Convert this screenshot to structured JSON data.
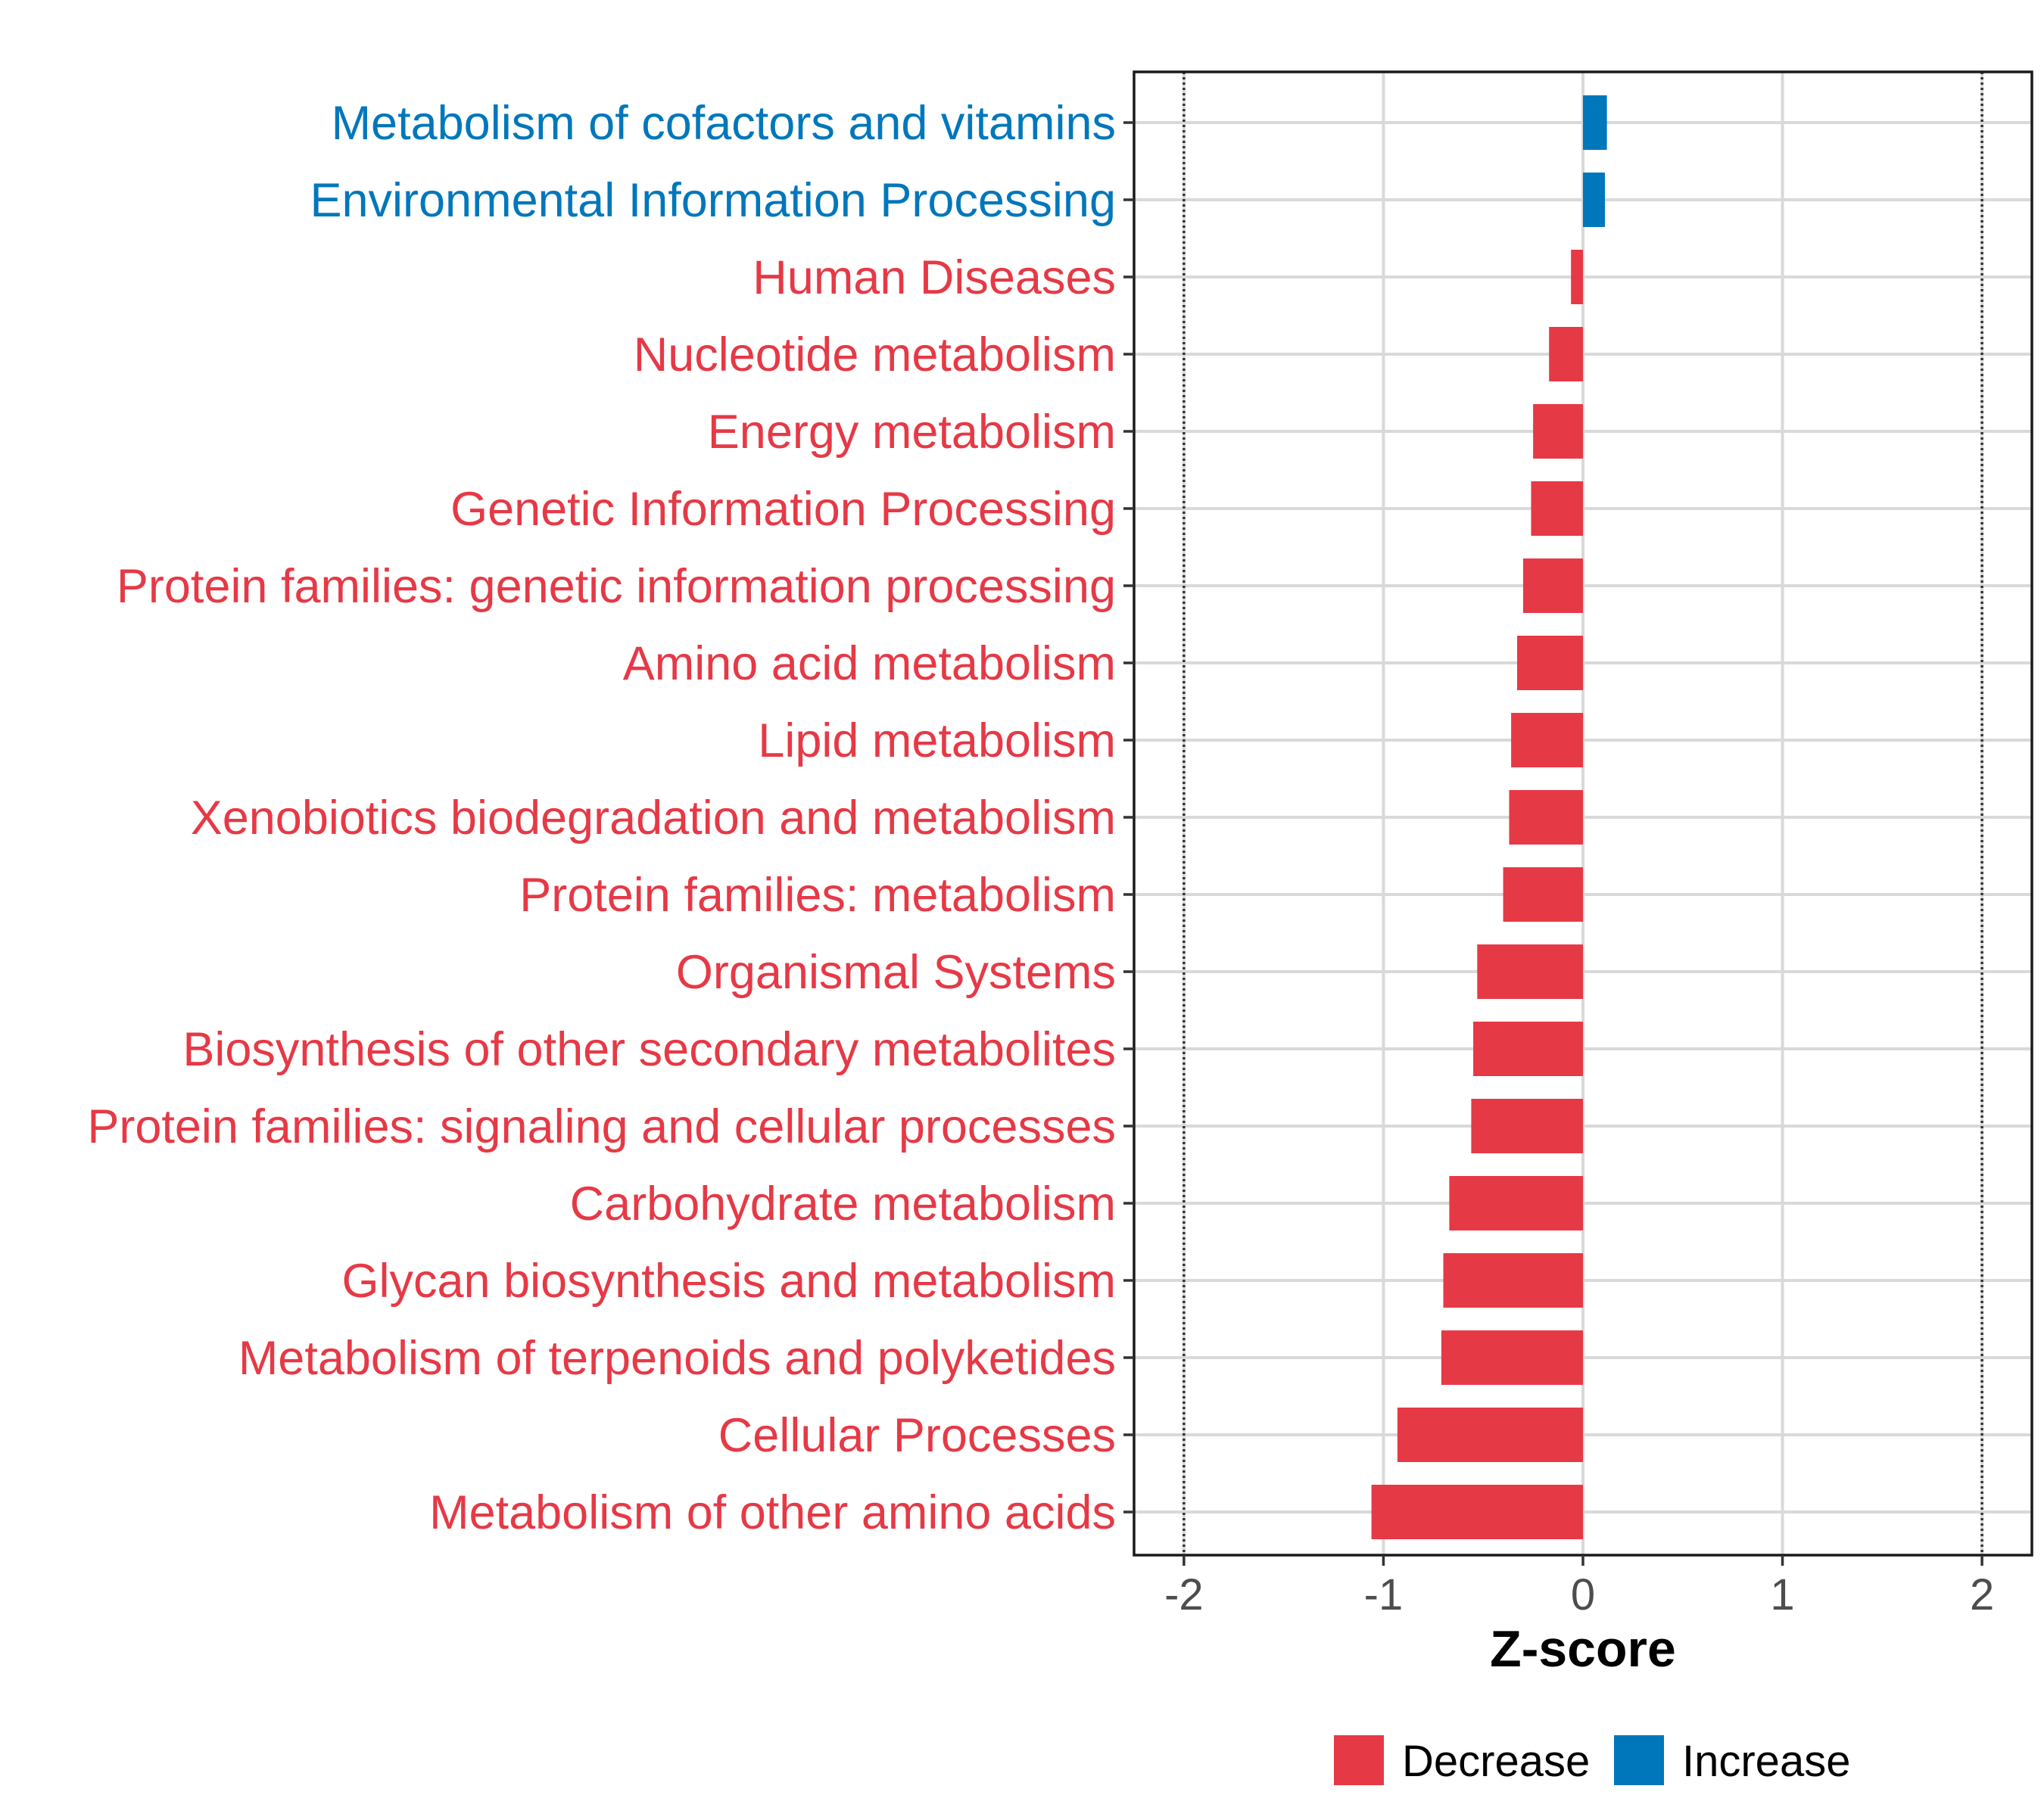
{
  "chart_data": {
    "type": "bar",
    "orientation": "horizontal",
    "title": "",
    "xlabel": "Z-score",
    "ylabel": "",
    "xlim": [
      -2.25,
      2.25
    ],
    "xticks": [
      -2,
      -1,
      0,
      1,
      2
    ],
    "xtick_labels": [
      "-2",
      "-1",
      "0",
      "1",
      "2"
    ],
    "reference_lines": [
      -2,
      2
    ],
    "grid": true,
    "legend_position": "bottom",
    "colors": {
      "Decrease": "#e63946",
      "Increase": "#0077bb"
    },
    "legend": [
      {
        "label": "Decrease",
        "color": "#e63946"
      },
      {
        "label": "Increase",
        "color": "#0077bb"
      }
    ],
    "categories": [
      "Metabolism of cofactors and vitamins",
      "Environmental Information Processing",
      "Human Diseases",
      "Nucleotide metabolism",
      "Energy metabolism",
      "Genetic Information Processing",
      "Protein families: genetic information processing",
      "Amino acid metabolism",
      "Lipid metabolism",
      "Xenobiotics biodegradation and metabolism",
      "Protein families: metabolism",
      "Organismal Systems",
      "Biosynthesis of other secondary metabolites",
      "Protein families: signaling and cellular processes",
      "Carbohydrate metabolism",
      "Glycan biosynthesis and metabolism",
      "Metabolism of terpenoids and polyketides",
      "Cellular Processes",
      "Metabolism of other amino acids"
    ],
    "values": [
      0.12,
      0.11,
      -0.06,
      -0.17,
      -0.25,
      -0.26,
      -0.3,
      -0.33,
      -0.36,
      -0.37,
      -0.4,
      -0.53,
      -0.55,
      -0.56,
      -0.67,
      -0.7,
      -0.71,
      -0.93,
      -1.06
    ],
    "groups": [
      "Increase",
      "Increase",
      "Decrease",
      "Decrease",
      "Decrease",
      "Decrease",
      "Decrease",
      "Decrease",
      "Decrease",
      "Decrease",
      "Decrease",
      "Decrease",
      "Decrease",
      "Decrease",
      "Decrease",
      "Decrease",
      "Decrease",
      "Decrease",
      "Decrease"
    ]
  }
}
